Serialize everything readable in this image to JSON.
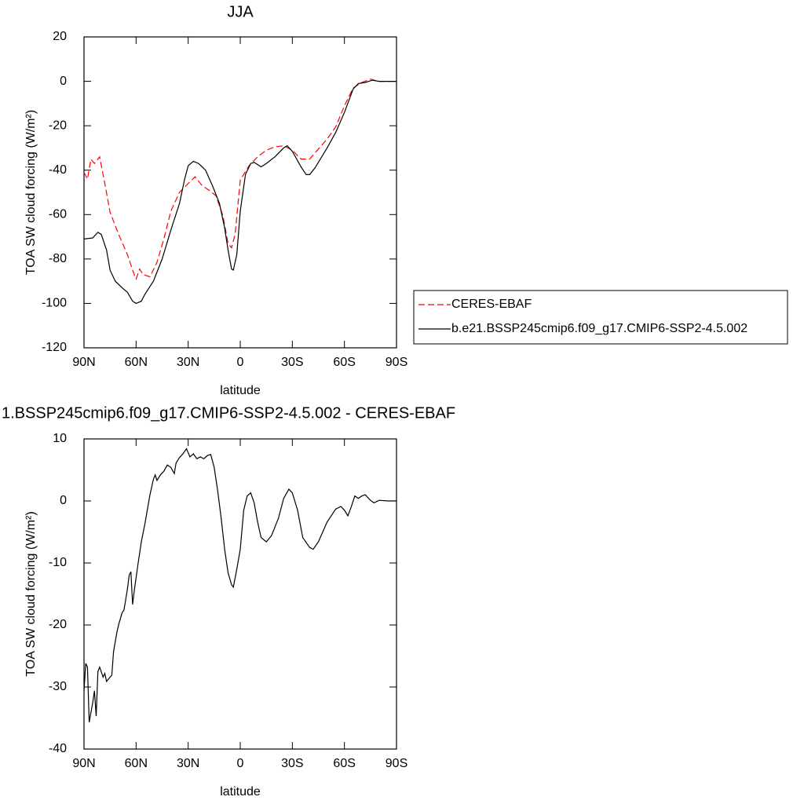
{
  "chart_data": [
    {
      "type": "line",
      "title": "JJA",
      "xlabel": "latitude",
      "ylabel": "TOA SW cloud forcing (W/m²)",
      "xlim": [
        90,
        -90
      ],
      "ylim": [
        -120,
        20
      ],
      "xticks": [
        {
          "value": 90,
          "label": "90N"
        },
        {
          "value": 60,
          "label": "60N"
        },
        {
          "value": 30,
          "label": "30N"
        },
        0,
        {
          "value": -30,
          "label": "30S"
        },
        {
          "value": -60,
          "label": "60S"
        },
        {
          "value": -90,
          "label": "90S"
        }
      ],
      "yticks": [
        -120,
        -100,
        -80,
        -60,
        -40,
        -20,
        0,
        20
      ],
      "legend": "right",
      "series": [
        {
          "name": "CERES-EBAF",
          "color": "#ff0000",
          "line_style": "dashed",
          "x": [
            90,
            88,
            86,
            84,
            81,
            78,
            75,
            70,
            65,
            62,
            60,
            58,
            56,
            52,
            48,
            44,
            40,
            35,
            30,
            26,
            22,
            18,
            14,
            10,
            7,
            5,
            3,
            0,
            -5,
            -10,
            -15,
            -20,
            -25,
            -30,
            -35,
            -40,
            -45,
            -50,
            -55,
            -60,
            -65,
            -70,
            -75,
            -80,
            -90
          ],
          "values": [
            -41,
            -44,
            -35,
            -37,
            -34,
            -46,
            -59,
            -69,
            -78,
            -85,
            -89,
            -84.5,
            -87,
            -88,
            -81.5,
            -71,
            -58.5,
            -50,
            -46,
            -43,
            -47,
            -49,
            -51.5,
            -60.5,
            -73,
            -75,
            -69,
            -44.5,
            -38,
            -34,
            -31,
            -29.5,
            -29,
            -31,
            -35,
            -35,
            -30.5,
            -26,
            -20.5,
            -11,
            -3,
            -0.5,
            1,
            0,
            0
          ]
        },
        {
          "name": "b.e21.BSSP245cmip6.f09_g17.CMIP6-SSP2-4.5.002",
          "color": "#000000",
          "line_style": "solid",
          "x": [
            90,
            85,
            82,
            80,
            77,
            75,
            72,
            68,
            65,
            62,
            60,
            57,
            55,
            50,
            45,
            40,
            35,
            32,
            30,
            27,
            24,
            20,
            16,
            12,
            9,
            7,
            5,
            4,
            2,
            0,
            -3,
            -6,
            -8,
            -12,
            -15,
            -20,
            -25,
            -27,
            -30,
            -35,
            -38,
            -40,
            -43,
            -50,
            -55,
            -60,
            -65,
            -68,
            -72,
            -76,
            -80,
            -90
          ],
          "values": [
            -71,
            -70.5,
            -68,
            -69,
            -76,
            -85,
            -90,
            -93,
            -95,
            -99,
            -100,
            -99,
            -96,
            -90,
            -80,
            -67,
            -55,
            -44,
            -38,
            -36,
            -37,
            -40,
            -47,
            -55,
            -66,
            -76,
            -84.5,
            -85,
            -78,
            -58.5,
            -42,
            -37,
            -36.5,
            -38.5,
            -37,
            -34,
            -30,
            -29,
            -31.5,
            -38.5,
            -42,
            -42,
            -39,
            -30,
            -23,
            -14,
            -3.5,
            -1,
            -0.5,
            0.5,
            0,
            0
          ]
        }
      ]
    },
    {
      "type": "line",
      "title": "1.BSSP245cmip6.f09_g17.CMIP6-SSP2-4.5.002 - CERES-EBAF",
      "xlabel": "latitude",
      "ylabel": "TOA SW cloud forcing (W/m²)",
      "xlim": [
        90,
        -90
      ],
      "ylim": [
        -40,
        10
      ],
      "xticks": [
        {
          "value": 90,
          "label": "90N"
        },
        {
          "value": 60,
          "label": "60N"
        },
        {
          "value": 30,
          "label": "30N"
        },
        0,
        {
          "value": -30,
          "label": "30S"
        },
        {
          "value": -60,
          "label": "60S"
        },
        {
          "value": -90,
          "label": "90S"
        }
      ],
      "yticks": [
        -40,
        -30,
        -20,
        -10,
        0,
        10
      ],
      "series": [
        {
          "color": "#000000",
          "line_style": "solid",
          "x": [
            90,
            89,
            88,
            87,
            85,
            84,
            83,
            82,
            81,
            79,
            78,
            77,
            75,
            74,
            73,
            71,
            70,
            68,
            67,
            65,
            64,
            63,
            62,
            61,
            59,
            57,
            55,
            52,
            50,
            49,
            48,
            46,
            44,
            42,
            40,
            38,
            37,
            35,
            33,
            31,
            29,
            27,
            25,
            23,
            21,
            19,
            17,
            15,
            13,
            11,
            9,
            7,
            5,
            4,
            2,
            0,
            -2,
            -4,
            -6,
            -8,
            -10,
            -12,
            -15,
            -18,
            -22,
            -25,
            -28,
            -30,
            -33,
            -36,
            -40,
            -42,
            -45,
            -50,
            -55,
            -58,
            -60,
            -62,
            -64,
            -66,
            -68,
            -70,
            -72,
            -75,
            -77,
            -80,
            -85,
            -90
          ],
          "values": [
            -30.6,
            -26.2,
            -26.8,
            -35.7,
            -32.5,
            -30.6,
            -34.7,
            -27.5,
            -26.8,
            -28.4,
            -27.8,
            -29.1,
            -28.4,
            -28.1,
            -24.3,
            -21.1,
            -19.9,
            -18,
            -17.6,
            -14.2,
            -12,
            -11.4,
            -16.7,
            -14.4,
            -10.4,
            -6.6,
            -3.8,
            1,
            3.5,
            4.2,
            3.3,
            4.2,
            4.8,
            5.8,
            5.4,
            4.4,
            6.1,
            7,
            7.6,
            8.4,
            7.1,
            7.6,
            6.8,
            7.1,
            6.8,
            7.3,
            7.5,
            5.4,
            1.6,
            -2.8,
            -7.8,
            -11.6,
            -13.5,
            -13.9,
            -11,
            -7.8,
            -1.5,
            0.8,
            1.3,
            -0.3,
            -3.4,
            -5.9,
            -6.6,
            -5.6,
            -2.8,
            0.4,
            1.9,
            1.3,
            -1.5,
            -5.9,
            -7.5,
            -7.8,
            -6.6,
            -3.4,
            -1.3,
            -0.9,
            -1.5,
            -2.4,
            -0.9,
            0.8,
            0.4,
            0.8,
            1,
            0.1,
            -0.3,
            0.1,
            0,
            0
          ]
        }
      ]
    }
  ]
}
